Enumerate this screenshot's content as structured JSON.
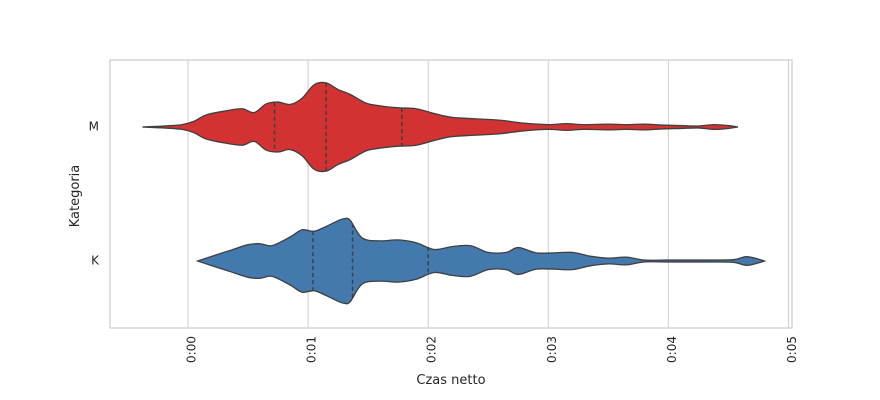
{
  "chart_data": {
    "type": "violin",
    "orientation": "horizontal",
    "xlabel": "Czas netto",
    "ylabel": "Kategoria",
    "xlim": [
      -0.0065,
      0.0503
    ],
    "x_ticks": [
      0.0,
      0.01,
      0.02,
      0.03,
      0.04,
      0.05
    ],
    "x_tick_labels": [
      "0:00",
      "0:01",
      "0:02",
      "0:03",
      "0:04",
      "0:05"
    ],
    "grid": "vertical",
    "categories": [
      "M",
      "K"
    ],
    "series": [
      {
        "category": "M",
        "color": "#d23232",
        "quartiles": [
          0.0072,
          0.0115,
          0.0178
        ],
        "range": [
          -0.0038,
          0.0458
        ],
        "density_profile": [
          [
            -0.0038,
            0.0
          ],
          [
            -0.002,
            0.02
          ],
          [
            -0.0005,
            0.05
          ],
          [
            0.0005,
            0.12
          ],
          [
            0.0015,
            0.25
          ],
          [
            0.003,
            0.33
          ],
          [
            0.0045,
            0.38
          ],
          [
            0.0055,
            0.3
          ],
          [
            0.0065,
            0.48
          ],
          [
            0.0075,
            0.52
          ],
          [
            0.0085,
            0.47
          ],
          [
            0.0095,
            0.6
          ],
          [
            0.0105,
            0.88
          ],
          [
            0.0115,
            0.92
          ],
          [
            0.0125,
            0.78
          ],
          [
            0.0135,
            0.68
          ],
          [
            0.0148,
            0.5
          ],
          [
            0.016,
            0.44
          ],
          [
            0.0175,
            0.4
          ],
          [
            0.019,
            0.38
          ],
          [
            0.0205,
            0.28
          ],
          [
            0.022,
            0.2
          ],
          [
            0.024,
            0.17
          ],
          [
            0.026,
            0.14
          ],
          [
            0.028,
            0.08
          ],
          [
            0.03,
            0.05
          ],
          [
            0.0315,
            0.07
          ],
          [
            0.033,
            0.05
          ],
          [
            0.035,
            0.06
          ],
          [
            0.0365,
            0.05
          ],
          [
            0.038,
            0.06
          ],
          [
            0.0395,
            0.04
          ],
          [
            0.041,
            0.03
          ],
          [
            0.0425,
            0.02
          ],
          [
            0.0438,
            0.05
          ],
          [
            0.045,
            0.03
          ],
          [
            0.0458,
            0.0
          ]
        ]
      },
      {
        "category": "K",
        "color": "#4479ad",
        "quartiles": [
          0.0104,
          0.0137,
          0.02
        ],
        "range": [
          0.0008,
          0.048
        ],
        "density_profile": [
          [
            0.0008,
            0.0
          ],
          [
            0.002,
            0.1
          ],
          [
            0.0035,
            0.22
          ],
          [
            0.005,
            0.34
          ],
          [
            0.006,
            0.36
          ],
          [
            0.007,
            0.32
          ],
          [
            0.0085,
            0.5
          ],
          [
            0.0095,
            0.65
          ],
          [
            0.0105,
            0.62
          ],
          [
            0.0115,
            0.72
          ],
          [
            0.0125,
            0.84
          ],
          [
            0.013,
            0.88
          ],
          [
            0.0135,
            0.85
          ],
          [
            0.0145,
            0.48
          ],
          [
            0.016,
            0.42
          ],
          [
            0.0175,
            0.44
          ],
          [
            0.019,
            0.38
          ],
          [
            0.0205,
            0.24
          ],
          [
            0.022,
            0.3
          ],
          [
            0.0235,
            0.32
          ],
          [
            0.025,
            0.18
          ],
          [
            0.0265,
            0.18
          ],
          [
            0.0275,
            0.28
          ],
          [
            0.029,
            0.17
          ],
          [
            0.0305,
            0.17
          ],
          [
            0.032,
            0.18
          ],
          [
            0.0335,
            0.1
          ],
          [
            0.035,
            0.06
          ],
          [
            0.0365,
            0.08
          ],
          [
            0.038,
            0.02
          ],
          [
            0.04,
            0.02
          ],
          [
            0.042,
            0.02
          ],
          [
            0.044,
            0.02
          ],
          [
            0.0455,
            0.03
          ],
          [
            0.0465,
            0.09
          ],
          [
            0.0475,
            0.04
          ],
          [
            0.048,
            0.0
          ]
        ]
      }
    ]
  }
}
